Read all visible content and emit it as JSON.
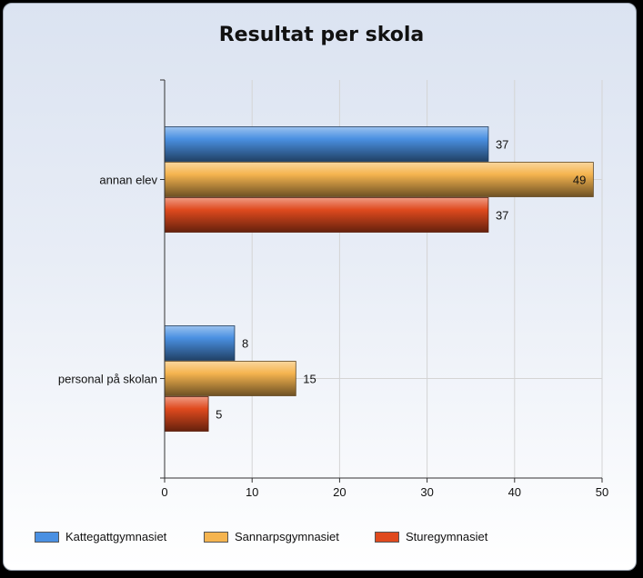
{
  "chart_data": {
    "type": "bar",
    "orientation": "horizontal",
    "title": "Resultat per skola",
    "categories": [
      "annan elev",
      "personal på skolan"
    ],
    "series": [
      {
        "name": "Kattegattgymnasiet",
        "values": [
          37,
          8
        ],
        "color": "#4a90e2"
      },
      {
        "name": "Sannarpsgymnasiet",
        "values": [
          49,
          15
        ],
        "color": "#f5b44f"
      },
      {
        "name": "Sturegymnasiet",
        "values": [
          37,
          5
        ],
        "color": "#e04a1e"
      }
    ],
    "xlim": [
      0,
      50
    ],
    "xticks": [
      0,
      10,
      20,
      30,
      40,
      50
    ],
    "grid": true,
    "legend_position": "bottom",
    "data_labels": true
  }
}
